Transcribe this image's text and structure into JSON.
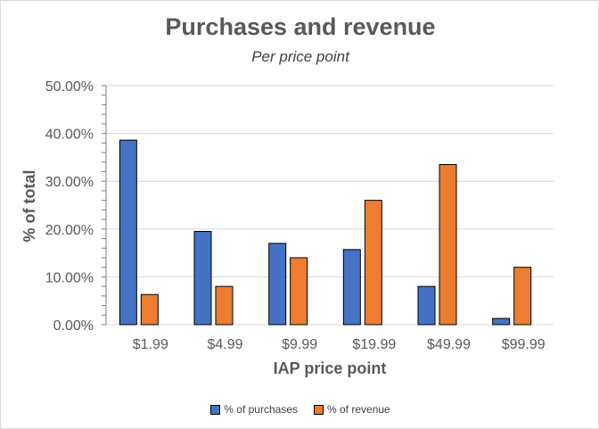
{
  "chart_data": {
    "type": "bar",
    "title": "Purchases and revenue",
    "subtitle": "Per price point",
    "xlabel": "IAP price point",
    "ylabel": "% of total",
    "categories": [
      "$1.99",
      "$4.99",
      "$9.99",
      "$19.99",
      "$49.99",
      "$99.99"
    ],
    "series": [
      {
        "name": "% of purchases",
        "color": "#4472c4",
        "values": [
          38.6,
          19.5,
          17.0,
          15.7,
          8.0,
          1.3
        ]
      },
      {
        "name": "% of revenue",
        "color": "#ed7d31",
        "values": [
          6.3,
          8.0,
          14.0,
          26.0,
          33.5,
          12.0
        ]
      }
    ],
    "ylim": [
      0,
      50
    ],
    "yticks": [
      "0.00%",
      "10.00%",
      "20.00%",
      "30.00%",
      "40.00%",
      "50.00%"
    ],
    "grid": true,
    "legend_position": "bottom"
  }
}
